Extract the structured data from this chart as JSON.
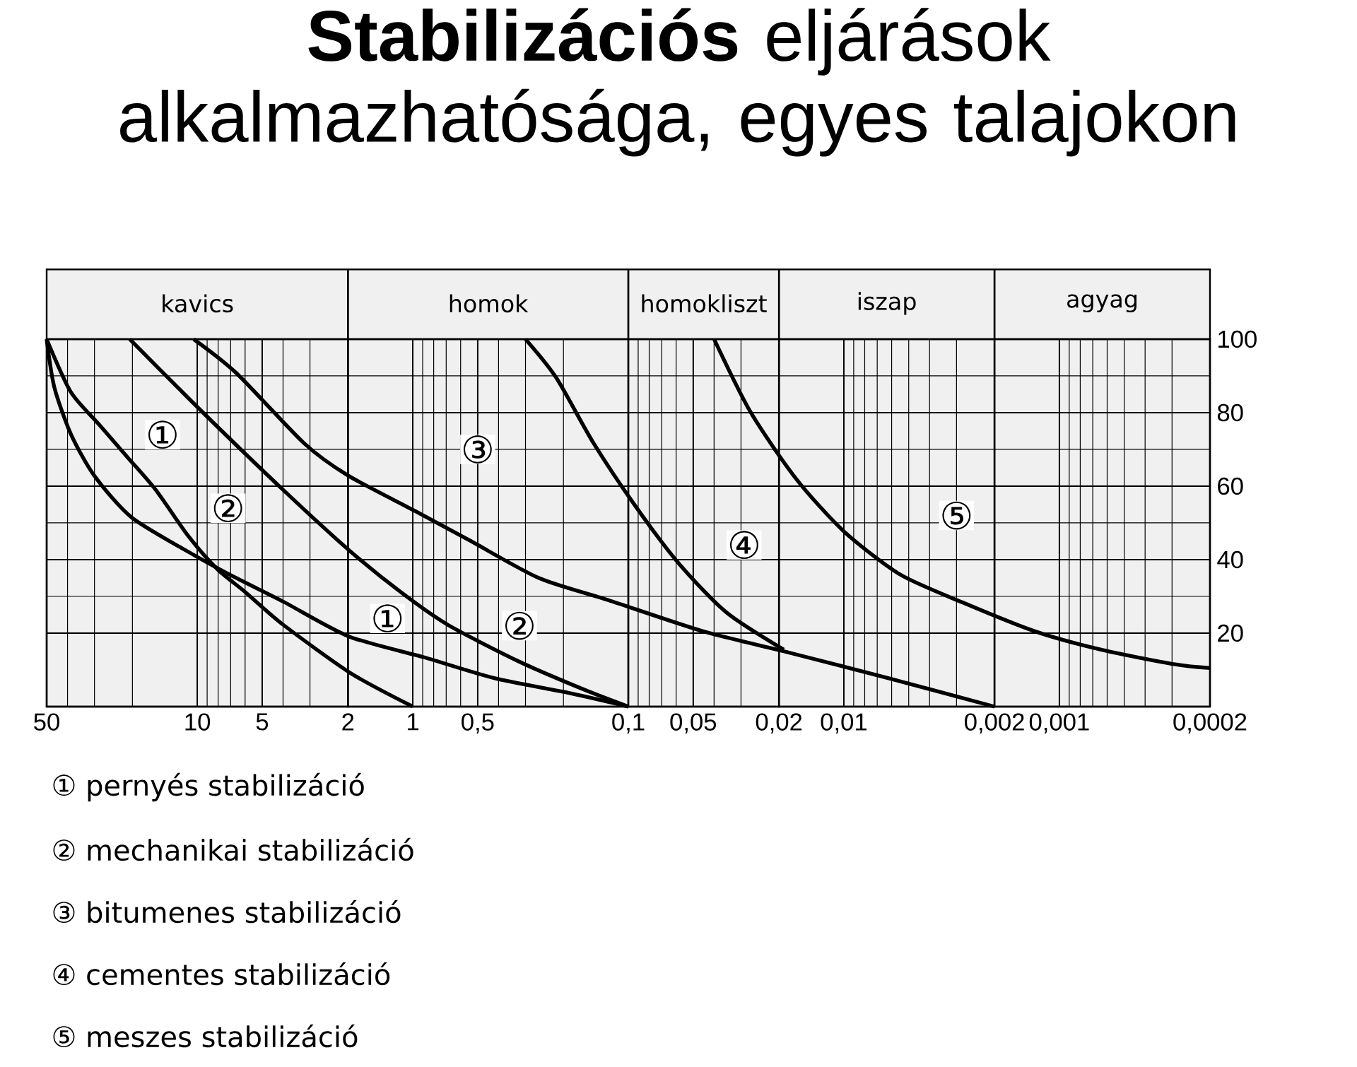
{
  "chart_data": {
    "type": "line",
    "title": "**Stabilizációs** eljárások alkalmazhatósága, egyes talajokon",
    "log": "x",
    "grid": true,
    "xlim": [
      50,
      0.0002
    ],
    "ylim": [
      0,
      100
    ],
    "xticks": [
      50,
      10,
      5,
      2,
      1,
      {
        "value": 0.5,
        "label": "0,5"
      },
      {
        "value": 0.1,
        "label": "0,1"
      },
      {
        "value": 0.05,
        "label": "0,05"
      },
      {
        "value": 0.02,
        "label": "0,02"
      },
      {
        "value": 0.01,
        "label": "0,01"
      },
      {
        "value": 0.002,
        "label": "0,002"
      },
      {
        "value": 0.001,
        "label": "0,001"
      },
      {
        "value": 0.0002,
        "label": "0,0002"
      }
    ],
    "yticks": [
      20,
      40,
      60,
      80,
      100
    ],
    "bands": [
      {
        "axis": "x",
        "from": 50,
        "to": 2,
        "label": "kavics",
        "color": "#f0f0f0"
      },
      {
        "axis": "x",
        "from": 2,
        "to": 0.1,
        "label": "homok",
        "color": "#f0f0f0"
      },
      {
        "axis": "x",
        "from": 0.1,
        "to": 0.02,
        "label": "homokliszt",
        "color": "#f0f0f0"
      },
      {
        "axis": "x",
        "from": 0.02,
        "to": 0.002,
        "label": "iszap",
        "color": "#f0f0f0"
      },
      {
        "axis": "x",
        "from": 0.002,
        "to": 0.0002,
        "label": "agyag",
        "color": "#f0f0f0"
      }
    ],
    "series": [
      {
        "color": "#000000",
        "x": [
          50,
          46.1,
          38.7,
          30.1,
          20.1,
          10.4,
          6.6,
          4.0,
          1.98,
          0.885,
          0.416,
          0.195,
          0.1
        ],
        "values": [
          100,
          87,
          74.3,
          62.9,
          51.4,
          41.3,
          35,
          28.6,
          19.1,
          13.4,
          7.7,
          3.9,
          0
        ]
      },
      {
        "color": "#000000",
        "x": [
          50,
          38.7,
          28.6,
          21.1,
          15.6,
          11,
          8.1,
          6,
          4,
          1.93,
          1
        ],
        "values": [
          100,
          85.7,
          76.8,
          67.9,
          59,
          46.4,
          37.5,
          31.2,
          22.3,
          9,
          0
        ]
      },
      {
        "color": "#000000",
        "x": [
          20.6,
          9.4,
          4,
          1.98,
          1.14,
          0.69,
          0.32,
          0.16,
          0.1
        ],
        "values": [
          100,
          80,
          59,
          42.6,
          31.2,
          22.3,
          12.2,
          4.6,
          0
        ]
      },
      {
        "color": "#000000",
        "x": [
          10.4,
          6.6,
          3.2,
          2,
          0.98,
          0.54,
          0.26,
          0.124,
          0.045,
          0.018,
          0.0061,
          0.002
        ],
        "values": [
          100,
          90.8,
          71.7,
          62.9,
          53.3,
          45.1,
          35,
          29,
          20.5,
          14.7,
          7.6,
          0
        ]
      },
      {
        "color": "#000000",
        "x": [
          0.3,
          0.216,
          0.145,
          0.092,
          0.058,
          0.035,
          0.019
        ],
        "values": [
          100,
          89.5,
          71.7,
          54.3,
          38.8,
          25.6,
          15.5
        ]
      },
      {
        "color": "#000000",
        "x": [
          0.04,
          0.027,
          0.0166,
          0.01,
          0.0055,
          0.0028,
          0.0013,
          0.00063,
          0.00029,
          0.0002
        ],
        "values": [
          100,
          80,
          61.9,
          47.7,
          36,
          28.3,
          20.5,
          15.4,
          11.5,
          10.5
        ]
      }
    ],
    "annotations": [
      {
        "text": "①",
        "x": 14.5,
        "y": 74
      },
      {
        "text": "②",
        "x": 7.2,
        "y": 54
      },
      {
        "text": "③",
        "x": 0.5,
        "y": 70
      },
      {
        "text": "①",
        "x": 1.31,
        "y": 24
      },
      {
        "text": "②",
        "x": 0.32,
        "y": 22
      },
      {
        "text": "④",
        "x": 0.029,
        "y": 44
      },
      {
        "text": "⑤",
        "x": 0.003,
        "y": 52
      },
      "① pernyés stabilizáció",
      "② mechanikai stabilizáció",
      "③ bitumenes stabilizáció",
      "④ cementes stabilizáció",
      "⑤ meszes stabilizáció"
    ]
  }
}
